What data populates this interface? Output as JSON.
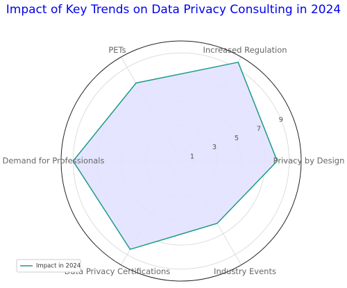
{
  "chart_data": {
    "type": "radar",
    "title": "Impact of Key Trends on Data Privacy Consulting in 2024",
    "categories": [
      "Privacy by Design",
      "Increased Regulation",
      "PETs",
      "Demand for Professionals",
      "Data Privacy Certifications",
      "Industry Events"
    ],
    "series": [
      {
        "name": "Impact in 2024",
        "color": "#1a9a86",
        "fill": "#e2e2ff",
        "values": [
          8,
          9.5,
          7.5,
          9,
          8.5,
          6
        ]
      }
    ],
    "ylim": [
      0,
      10
    ],
    "yticks": [
      1,
      3,
      5,
      7,
      9
    ],
    "grid": true,
    "legend": "lower left"
  }
}
